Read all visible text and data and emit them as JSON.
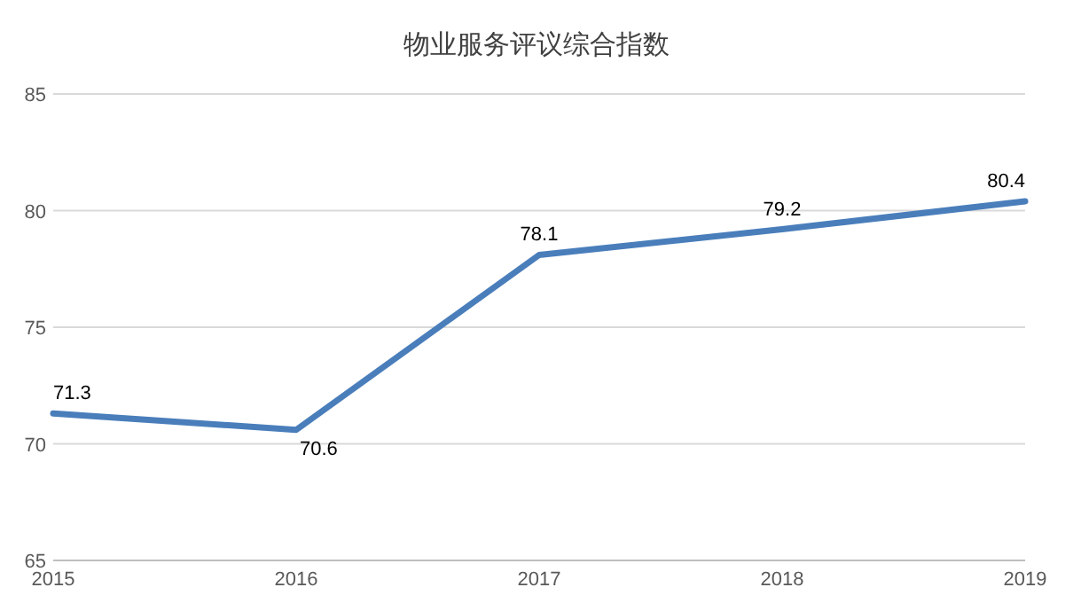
{
  "chart_data": {
    "type": "line",
    "title": "物业服务评议综合指数",
    "x": [
      2015,
      2016,
      2017,
      2018,
      2019
    ],
    "series": [
      {
        "color": "#4a7ebb",
        "values": [
          71.3,
          70.6,
          78.1,
          79.2,
          80.4
        ]
      }
    ],
    "xlim": [
      2015,
      2019
    ],
    "xticks": [
      2015,
      2016,
      2017,
      2018,
      2019
    ],
    "ylim": [
      65,
      85
    ],
    "yticks": [
      65,
      70,
      75,
      80,
      85
    ],
    "grid": "y",
    "data_labels": true,
    "marker": "none",
    "line_style": "solid"
  }
}
